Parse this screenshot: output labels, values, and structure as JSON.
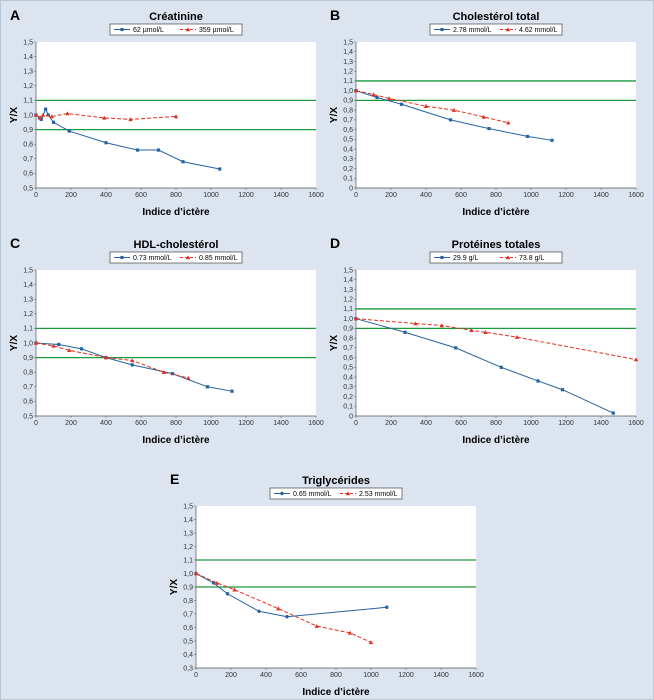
{
  "colors": {
    "background": "#dbe4ef",
    "plot_area": "#ffffff",
    "reference_lines": "#1a9a3c",
    "series_low": "#2463a0",
    "series_high": "#e03020"
  },
  "chart_data": [
    {
      "panel": "A",
      "type": "line",
      "title": "Créatinine",
      "xlabel": "Indice d’ictère",
      "ylabel": "Y/X",
      "xlim": [
        0,
        1600
      ],
      "ylim": [
        0.5,
        1.5
      ],
      "x_ticks": [
        0,
        200,
        400,
        600,
        800,
        1000,
        1200,
        1400,
        1600
      ],
      "y_ticks": [
        "0,5",
        "0,6",
        "0,7",
        "0,8",
        "0,9",
        "1,0",
        "1,1",
        "1,2",
        "1,3",
        "1,4",
        "1,5"
      ],
      "reference_lines": [
        0.9,
        1.1
      ],
      "legend_position": "top-center",
      "grid": false,
      "series": [
        {
          "name": "62 µmol/L",
          "marker": "square",
          "style": "solid",
          "points": [
            [
              0,
              1.0
            ],
            [
              20,
              0.98
            ],
            [
              30,
              0.97
            ],
            [
              55,
              1.04
            ],
            [
              70,
              1.0
            ],
            [
              100,
              0.95
            ],
            [
              190,
              0.89
            ],
            [
              400,
              0.81
            ],
            [
              580,
              0.76
            ],
            [
              700,
              0.76
            ],
            [
              840,
              0.68
            ],
            [
              1050,
              0.63
            ]
          ]
        },
        {
          "name": "359 µmol/L",
          "marker": "triangle",
          "style": "dashed",
          "points": [
            [
              0,
              1.0
            ],
            [
              25,
              0.98
            ],
            [
              40,
              1.0
            ],
            [
              90,
              0.99
            ],
            [
              180,
              1.01
            ],
            [
              390,
              0.98
            ],
            [
              540,
              0.97
            ],
            [
              800,
              0.99
            ]
          ]
        }
      ]
    },
    {
      "panel": "B",
      "type": "line",
      "title": "Cholestérol total",
      "xlabel": "Indice d’ictère",
      "ylabel": "Y/X",
      "xlim": [
        0,
        1600
      ],
      "ylim": [
        0.0,
        1.5
      ],
      "x_ticks": [
        0,
        200,
        400,
        600,
        800,
        1000,
        1200,
        1400,
        1600
      ],
      "y_ticks": [
        "0",
        "0,1",
        "0,2",
        "0,3",
        "0,4",
        "0,5",
        "0,6",
        "0,7",
        "0,8",
        "0,9",
        "1,0",
        "1,1",
        "1,2",
        "1,3",
        "1,4",
        "1,5"
      ],
      "reference_lines": [
        0.9,
        1.1
      ],
      "legend_position": "top-center",
      "grid": false,
      "series": [
        {
          "name": "2.78 mmol/L",
          "marker": "square",
          "style": "solid",
          "points": [
            [
              0,
              1.0
            ],
            [
              120,
              0.93
            ],
            [
              260,
              0.86
            ],
            [
              540,
              0.7
            ],
            [
              760,
              0.61
            ],
            [
              980,
              0.53
            ],
            [
              1120,
              0.49
            ]
          ]
        },
        {
          "name": "4.62 mmol/L",
          "marker": "triangle",
          "style": "dashed",
          "points": [
            [
              0,
              1.0
            ],
            [
              100,
              0.96
            ],
            [
              190,
              0.92
            ],
            [
              400,
              0.84
            ],
            [
              560,
              0.8
            ],
            [
              730,
              0.73
            ],
            [
              870,
              0.67
            ]
          ]
        }
      ]
    },
    {
      "panel": "C",
      "type": "line",
      "title": "HDL-cholestérol",
      "xlabel": "Indice d’ictère",
      "ylabel": "Y/X",
      "xlim": [
        0,
        1600
      ],
      "ylim": [
        0.5,
        1.5
      ],
      "x_ticks": [
        0,
        200,
        400,
        600,
        800,
        1000,
        1200,
        1400,
        1600
      ],
      "y_ticks": [
        "0,5",
        "0,6",
        "0,7",
        "0,8",
        "0,9",
        "1,0",
        "1,1",
        "1,2",
        "1,3",
        "1,4",
        "1,5"
      ],
      "reference_lines": [
        0.9,
        1.1
      ],
      "legend_position": "top-center",
      "grid": false,
      "series": [
        {
          "name": "0.73 mmol/L",
          "marker": "square",
          "style": "solid",
          "points": [
            [
              0,
              1.0
            ],
            [
              130,
              0.99
            ],
            [
              260,
              0.96
            ],
            [
              400,
              0.9
            ],
            [
              550,
              0.85
            ],
            [
              780,
              0.79
            ],
            [
              980,
              0.7
            ],
            [
              1120,
              0.67
            ]
          ]
        },
        {
          "name": "0.85 mmol/L",
          "marker": "triangle",
          "style": "dashed",
          "points": [
            [
              0,
              1.0
            ],
            [
              100,
              0.98
            ],
            [
              190,
              0.95
            ],
            [
              400,
              0.9
            ],
            [
              550,
              0.88
            ],
            [
              730,
              0.8
            ],
            [
              870,
              0.76
            ]
          ]
        }
      ]
    },
    {
      "panel": "D",
      "type": "line",
      "title": "Protéines totales",
      "xlabel": "Indice d’ictère",
      "ylabel": "Y/X",
      "xlim": [
        0,
        1600
      ],
      "ylim": [
        0.0,
        1.5
      ],
      "x_ticks": [
        0,
        200,
        400,
        600,
        800,
        1000,
        1200,
        1400,
        1600
      ],
      "y_ticks": [
        "0",
        "0,1",
        "0,2",
        "0,3",
        "0,4",
        "0,5",
        "0,6",
        "0,7",
        "0,8",
        "0,9",
        "1,0",
        "1,1",
        "1,2",
        "1,3",
        "1,4",
        "1,5"
      ],
      "reference_lines": [
        0.9,
        1.1
      ],
      "legend_position": "top-center",
      "grid": false,
      "series": [
        {
          "name": "29.9 g/L",
          "marker": "square",
          "style": "solid",
          "points": [
            [
              0,
              1.0
            ],
            [
              280,
              0.86
            ],
            [
              570,
              0.7
            ],
            [
              830,
              0.5
            ],
            [
              1040,
              0.36
            ],
            [
              1180,
              0.27
            ],
            [
              1470,
              0.03
            ]
          ]
        },
        {
          "name": "73.8 g/L",
          "marker": "triangle",
          "style": "dashed",
          "points": [
            [
              0,
              1.0
            ],
            [
              340,
              0.95
            ],
            [
              490,
              0.93
            ],
            [
              660,
              0.88
            ],
            [
              740,
              0.86
            ],
            [
              920,
              0.81
            ],
            [
              1600,
              0.58
            ]
          ]
        }
      ]
    },
    {
      "panel": "E",
      "type": "line",
      "title": "Triglycérides",
      "xlabel": "Indice d’ictère",
      "ylabel": "Y/X",
      "xlim": [
        0,
        1600
      ],
      "ylim": [
        0.3,
        1.5
      ],
      "x_ticks": [
        0,
        200,
        400,
        600,
        800,
        1000,
        1200,
        1400,
        1600
      ],
      "y_ticks": [
        "0,3",
        "0,4",
        "0,5",
        "0,6",
        "0,7",
        "0,8",
        "0,9",
        "1,0",
        "1,1",
        "1,2",
        "1,3",
        "1,4",
        "1,5"
      ],
      "reference_lines": [
        0.9,
        1.1
      ],
      "legend_position": "top-center",
      "grid": false,
      "series": [
        {
          "name": "0.65 mmol/L",
          "marker": "circle",
          "style": "solid",
          "points": [
            [
              0,
              1.0
            ],
            [
              100,
              0.93
            ],
            [
              180,
              0.85
            ],
            [
              360,
              0.72
            ],
            [
              520,
              0.68
            ],
            [
              1090,
              0.75
            ]
          ]
        },
        {
          "name": "2.53 mmol/L",
          "marker": "triangle",
          "style": "dashed",
          "points": [
            [
              0,
              1.0
            ],
            [
              120,
              0.93
            ],
            [
              220,
              0.88
            ],
            [
              470,
              0.74
            ],
            [
              690,
              0.61
            ],
            [
              880,
              0.56
            ],
            [
              1000,
              0.49
            ]
          ]
        }
      ]
    }
  ]
}
